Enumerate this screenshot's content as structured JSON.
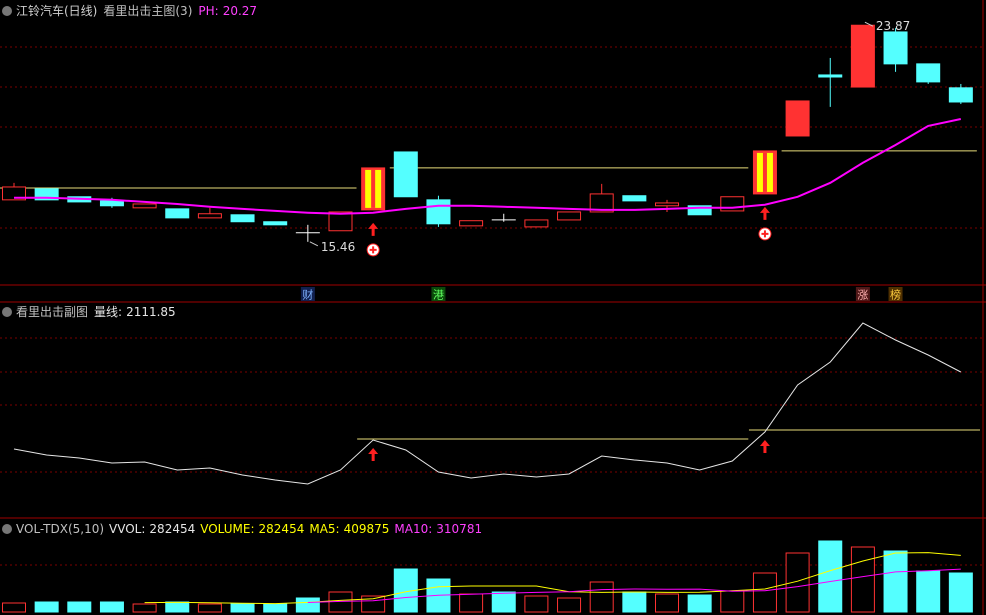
{
  "chart_data": [
    {
      "type": "candlestick",
      "title": "江铃汽车(日线)",
      "subtitle": "看里出击主图(3)",
      "ph_label": "PH:",
      "ph": 20.27,
      "open": [
        17.09,
        17.52,
        17.21,
        17.05,
        16.78,
        16.74,
        16.39,
        16.51,
        16.24,
        15.81,
        15.89,
        16.7,
        18.95,
        17.09,
        16.08,
        16.31,
        16.04,
        16.31,
        16.62,
        17.25,
        16.86,
        16.86,
        16.66,
        17.32,
        19.57,
        21.94,
        21.47,
        23.61,
        22.37,
        21.44
      ],
      "close": [
        17.59,
        17.09,
        17.01,
        16.86,
        16.93,
        16.39,
        16.55,
        16.24,
        16.12,
        15.81,
        16.62,
        18.33,
        17.21,
        16.16,
        16.28,
        16.31,
        16.31,
        16.62,
        17.32,
        17.05,
        16.97,
        16.51,
        17.21,
        18.99,
        20.93,
        21.86,
        23.87,
        22.37,
        21.67,
        20.89
      ],
      "high": [
        17.75,
        17.52,
        17.21,
        17.17,
        16.93,
        16.74,
        16.78,
        16.51,
        16.24,
        16.12,
        16.62,
        18.33,
        18.95,
        17.25,
        16.28,
        16.55,
        16.31,
        16.62,
        17.71,
        17.25,
        17.09,
        16.86,
        17.21,
        18.99,
        20.93,
        22.6,
        23.87,
        23.76,
        22.37,
        21.59
      ],
      "low": [
        17.09,
        17.09,
        17.01,
        16.78,
        16.78,
        16.39,
        16.39,
        16.24,
        16.12,
        15.46,
        15.89,
        16.7,
        17.21,
        16.04,
        16.08,
        16.24,
        16.04,
        16.31,
        16.62,
        17.05,
        16.62,
        16.51,
        16.66,
        17.32,
        19.57,
        20.7,
        21.47,
        22.06,
        21.59,
        20.81
      ],
      "ylim": [
        13.9,
        24.85
      ],
      "up_color": "#ff3232",
      "down_color": "#54ffff",
      "level_color": "#e8dc7a",
      "limit_up": [
        24,
        26
      ],
      "ma": {
        "color": "#ff00ff",
        "values": [
          17.17,
          17.17,
          17.13,
          17.09,
          17.01,
          16.93,
          16.82,
          16.74,
          16.66,
          16.59,
          16.55,
          16.59,
          16.74,
          16.86,
          16.86,
          16.82,
          16.78,
          16.74,
          16.7,
          16.7,
          16.74,
          16.78,
          16.78,
          16.9,
          17.21,
          17.75,
          18.53,
          19.22,
          19.96,
          20.23
        ]
      },
      "signals": [
        11,
        23
      ],
      "levels": [
        {
          "value": 17.55,
          "from": 0,
          "to": 10
        },
        {
          "value": 18.33,
          "from": 12,
          "to": 22
        },
        {
          "value": 18.99,
          "from": 24,
          "to": 29
        }
      ],
      "markers": [
        {
          "index": 9,
          "label": "财"
        },
        {
          "index": 13,
          "label": "港"
        },
        {
          "index": 26,
          "label": "涨"
        },
        {
          "index": 27,
          "label": "榜"
        }
      ]
    },
    {
      "type": "line",
      "title": "看里出击副图",
      "value_label": "量线:",
      "color": "#e6e6e6",
      "values": [
        1496,
        1448,
        1424,
        1384,
        1392,
        1328,
        1344,
        1288,
        1248,
        1216,
        1328,
        1568,
        1488,
        1312,
        1264,
        1296,
        1272,
        1296,
        1440,
        1408,
        1384,
        1328,
        1400,
        1632,
        2008,
        2192,
        2504,
        2368,
        2248,
        2111.85
      ],
      "ylim": [
        968,
        2648
      ],
      "signals": [
        11,
        23
      ],
      "level_color": "#e8dc7a",
      "levels": [
        {
          "value": 1576,
          "from": 11,
          "to": 22
        },
        {
          "value": 1648,
          "from": 23,
          "to": 29
        }
      ]
    },
    {
      "type": "bar",
      "title": "VOL-TDX(5,10)",
      "vvol_label": "VVOL:",
      "volume_label": "VOLUME:",
      "values": [
        65187,
        72430,
        72430,
        72430,
        57944,
        72430,
        57944,
        57944,
        57944,
        101402,
        144860,
        115888,
        311449,
        239019,
        130374,
        144860,
        115888,
        101402,
        217290,
        144860,
        130374,
        123131,
        152103,
        282477,
        427337,
        514253,
        470795,
        441823,
        296963,
        282454
      ],
      "ylim": [
        0,
        666356
      ],
      "series": [
        {
          "name": "MA5:",
          "color": "#ffff00",
          "values": [
            null,
            null,
            null,
            null,
            68084,
            69533,
            66636,
            63738,
            60841,
            69533,
            84019,
            95608,
            146309,
            182524,
            188318,
            188318,
            188318,
            146309,
            141963,
            144860,
            141963,
            143411,
            153552,
            166589,
            223084,
            299860,
            369393,
            427337,
            430234,
            409875
          ]
        },
        {
          "name": "MA10:",
          "color": "#ff00ff",
          "values": [
            null,
            null,
            null,
            null,
            null,
            null,
            null,
            null,
            null,
            68809,
            76776,
            81122,
            105024,
            121682,
            128925,
            136168,
            141963,
            146309,
            162243,
            166589,
            165140,
            165865,
            149930,
            154276,
            183972,
            220912,
            256402,
            290444,
            298412,
            310781
          ]
        }
      ]
    }
  ]
}
